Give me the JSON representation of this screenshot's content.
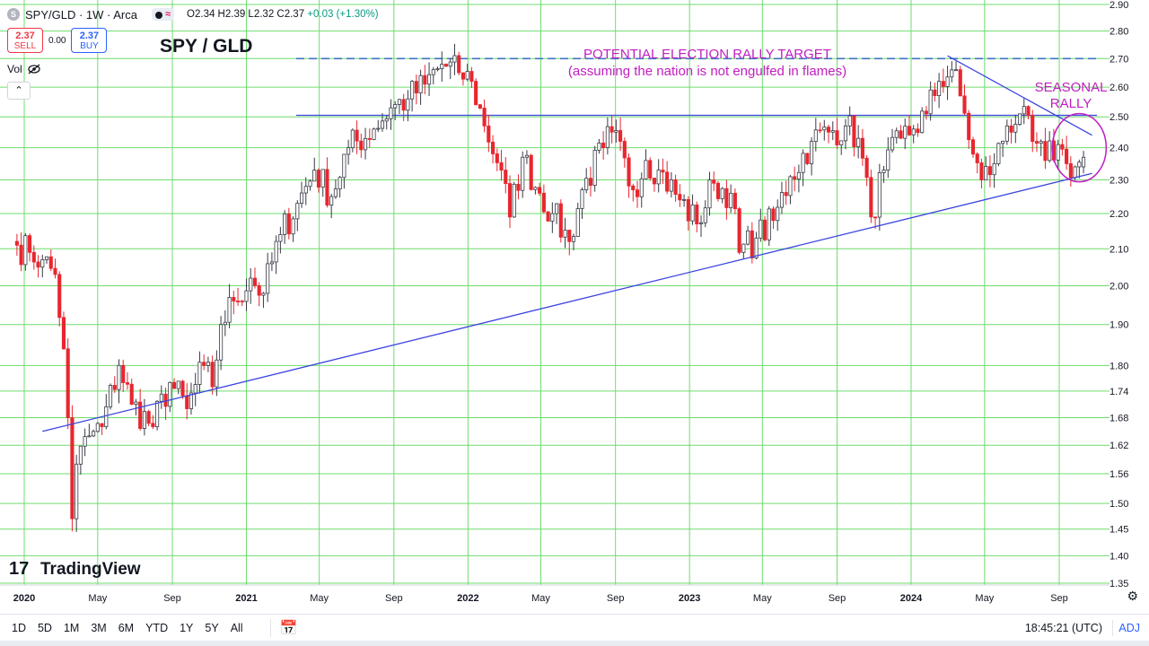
{
  "header": {
    "symbol_badge": "S",
    "symbol_line": "SPY/GLD · 1W · Arca",
    "status_glyph": "≈",
    "ohlc": "O2.34 H2.39 L2.32 C2.37",
    "change": "+0.03 (+1.30%)"
  },
  "trade": {
    "sell_price": "2.37",
    "sell_label": "SELL",
    "spread": "0.00",
    "buy_price": "2.37",
    "buy_label": "BUY"
  },
  "volume_label": "Vol",
  "chart_title": "SPY / GLD",
  "annotations": {
    "target_line1": "POTENTIAL ELECTION RALLY TARGET",
    "target_line2": "(assuming the nation is not engulfed in flames)",
    "seasonal1": "SEASONAL",
    "seasonal2": "RALLY"
  },
  "watermark": "TradingView",
  "bottom_bar": {
    "ranges": [
      "1D",
      "5D",
      "1M",
      "3M",
      "6M",
      "YTD",
      "1Y",
      "5Y",
      "All"
    ],
    "time": "18:45:21 (UTC)",
    "adj": "ADJ"
  },
  "colors": {
    "up": "#363a45",
    "down": "#e8262f",
    "grid": "#6fdc6f",
    "trendline": "#3b45e0",
    "annotation": "#c01ec0",
    "target_dash": "#4472c4"
  },
  "chart_data": {
    "type": "candlestick",
    "title": "SPY / GLD",
    "scale": "log",
    "ylim": [
      1.35,
      2.9
    ],
    "y_ticks": [
      1.35,
      1.4,
      1.45,
      1.5,
      1.56,
      1.62,
      1.68,
      1.74,
      1.8,
      1.9,
      2.0,
      2.1,
      2.2,
      2.3,
      2.4,
      2.5,
      2.6,
      2.7,
      2.8,
      2.9
    ],
    "x_ticks": [
      "2020",
      "May",
      "Sep",
      "2021",
      "May",
      "Sep",
      "2022",
      "May",
      "Sep",
      "2023",
      "May",
      "Sep",
      "2024",
      "May",
      "Sep"
    ],
    "x_tick_dates": [
      "2020-01-01",
      "2020-05-01",
      "2020-09-01",
      "2021-01-01",
      "2021-05-01",
      "2021-09-01",
      "2022-01-01",
      "2022-05-01",
      "2022-09-01",
      "2023-01-01",
      "2023-05-01",
      "2023-09-01",
      "2024-01-01",
      "2024-05-01",
      "2024-09-01"
    ],
    "x_range": [
      "2019-12-16",
      "2024-12-30"
    ],
    "grid": true,
    "weekly_close_anchors": [
      [
        "2019-12-20",
        2.11
      ],
      [
        "2020-01-10",
        2.09
      ],
      [
        "2020-01-31",
        2.07
      ],
      [
        "2020-02-21",
        2.03
      ],
      [
        "2020-03-06",
        1.84
      ],
      [
        "2020-03-13",
        1.68
      ],
      [
        "2020-03-20",
        1.47
      ],
      [
        "2020-03-27",
        1.58
      ],
      [
        "2020-04-17",
        1.64
      ],
      [
        "2020-05-08",
        1.66
      ],
      [
        "2020-06-05",
        1.8
      ],
      [
        "2020-06-26",
        1.71
      ],
      [
        "2020-07-31",
        1.66
      ],
      [
        "2020-08-28",
        1.76
      ],
      [
        "2020-09-25",
        1.7
      ],
      [
        "2020-10-23",
        1.8
      ],
      [
        "2020-11-06",
        1.75
      ],
      [
        "2020-11-20",
        1.9
      ],
      [
        "2020-12-11",
        1.96
      ],
      [
        "2021-01-08",
        2.02
      ],
      [
        "2021-01-29",
        1.98
      ],
      [
        "2021-02-26",
        2.14
      ],
      [
        "2021-03-26",
        2.23
      ],
      [
        "2021-04-23",
        2.33
      ],
      [
        "2021-05-21",
        2.25
      ],
      [
        "2021-06-18",
        2.4
      ],
      [
        "2021-07-30",
        2.46
      ],
      [
        "2021-08-27",
        2.53
      ],
      [
        "2021-09-24",
        2.56
      ],
      [
        "2021-10-22",
        2.61
      ],
      [
        "2021-11-19",
        2.68
      ],
      [
        "2021-12-17",
        2.65
      ],
      [
        "2022-01-07",
        2.62
      ],
      [
        "2022-01-28",
        2.47
      ],
      [
        "2022-02-25",
        2.33
      ],
      [
        "2022-03-11",
        2.19
      ],
      [
        "2022-04-01",
        2.37
      ],
      [
        "2022-04-29",
        2.26
      ],
      [
        "2022-05-20",
        2.2
      ],
      [
        "2022-06-17",
        2.12
      ],
      [
        "2022-07-08",
        2.27
      ],
      [
        "2022-08-12",
        2.4
      ],
      [
        "2022-08-26",
        2.45
      ],
      [
        "2022-09-30",
        2.27
      ],
      [
        "2022-10-21",
        2.36
      ],
      [
        "2022-11-11",
        2.33
      ],
      [
        "2022-12-16",
        2.24
      ],
      [
        "2023-01-13",
        2.17
      ],
      [
        "2023-02-10",
        2.29
      ],
      [
        "2023-03-10",
        2.26
      ],
      [
        "2023-03-24",
        2.09
      ],
      [
        "2023-04-21",
        2.13
      ],
      [
        "2023-05-19",
        2.18
      ],
      [
        "2023-06-16",
        2.31
      ],
      [
        "2023-07-21",
        2.42
      ],
      [
        "2023-08-18",
        2.45
      ],
      [
        "2023-09-15",
        2.47
      ],
      [
        "2023-10-06",
        2.43
      ],
      [
        "2023-10-27",
        2.19
      ],
      [
        "2023-11-17",
        2.33
      ],
      [
        "2023-12-15",
        2.43
      ],
      [
        "2024-01-05",
        2.46
      ],
      [
        "2024-01-26",
        2.51
      ],
      [
        "2024-02-16",
        2.62
      ],
      [
        "2024-03-08",
        2.66
      ],
      [
        "2024-03-22",
        2.57
      ],
      [
        "2024-04-12",
        2.38
      ],
      [
        "2024-04-26",
        2.3
      ],
      [
        "2024-05-17",
        2.35
      ],
      [
        "2024-06-07",
        2.47
      ],
      [
        "2024-06-28",
        2.51
      ],
      [
        "2024-07-19",
        2.42
      ],
      [
        "2024-08-09",
        2.36
      ],
      [
        "2024-08-30",
        2.41
      ],
      [
        "2024-09-13",
        2.35
      ],
      [
        "2024-09-27",
        2.34
      ],
      [
        "2024-10-11",
        2.37
      ]
    ],
    "last_bar": {
      "date": "2024-10-11",
      "open": 2.34,
      "high": 2.39,
      "low": 2.32,
      "close": 2.37
    },
    "horizontal_levels": [
      {
        "style": "dashed",
        "value": 2.7
      },
      {
        "style": "solid",
        "value": 2.505
      }
    ],
    "trendlines": [
      {
        "from": [
          "2020-01-31",
          1.65
        ],
        "to": [
          "2024-10-25",
          2.32
        ]
      },
      {
        "from": [
          "2024-03-01",
          2.71
        ],
        "to": [
          "2024-10-25",
          2.44
        ]
      }
    ],
    "circle_center": [
      "2024-10-04",
      2.4
    ]
  }
}
